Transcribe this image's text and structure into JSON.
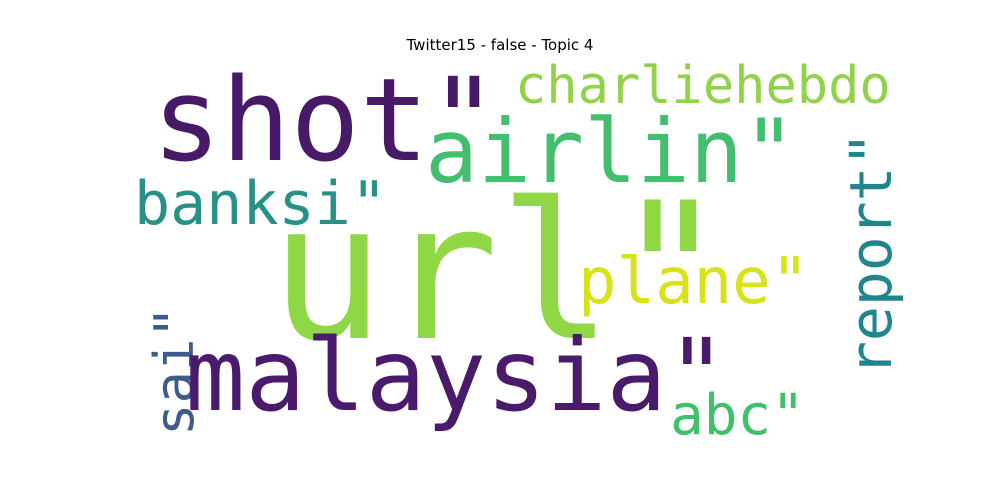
{
  "title": "Twitter15 - false - Topic 4",
  "words": [
    {
      "key": "shot",
      "text": "shot\"",
      "color": "#461a66"
    },
    {
      "key": "charliehebdo",
      "text": "charliehebdo",
      "color": "#92d24a"
    },
    {
      "key": "airlin",
      "text": "airlin\"",
      "color": "#43bd6e"
    },
    {
      "key": "banksi",
      "text": "banksi\"",
      "color": "#269187"
    },
    {
      "key": "url",
      "text": "url\"",
      "color": "#8fd744"
    },
    {
      "key": "plane",
      "text": "plane\"",
      "color": "#d8e219"
    },
    {
      "key": "report",
      "text": "report\"",
      "color": "#20868c"
    },
    {
      "key": "sai",
      "text": "sai\"",
      "color": "#3f5b8c"
    },
    {
      "key": "malaysia",
      "text": "malaysia\"",
      "color": "#4a1a6b"
    },
    {
      "key": "abc",
      "text": "abc\"",
      "color": "#40c06a"
    }
  ]
}
